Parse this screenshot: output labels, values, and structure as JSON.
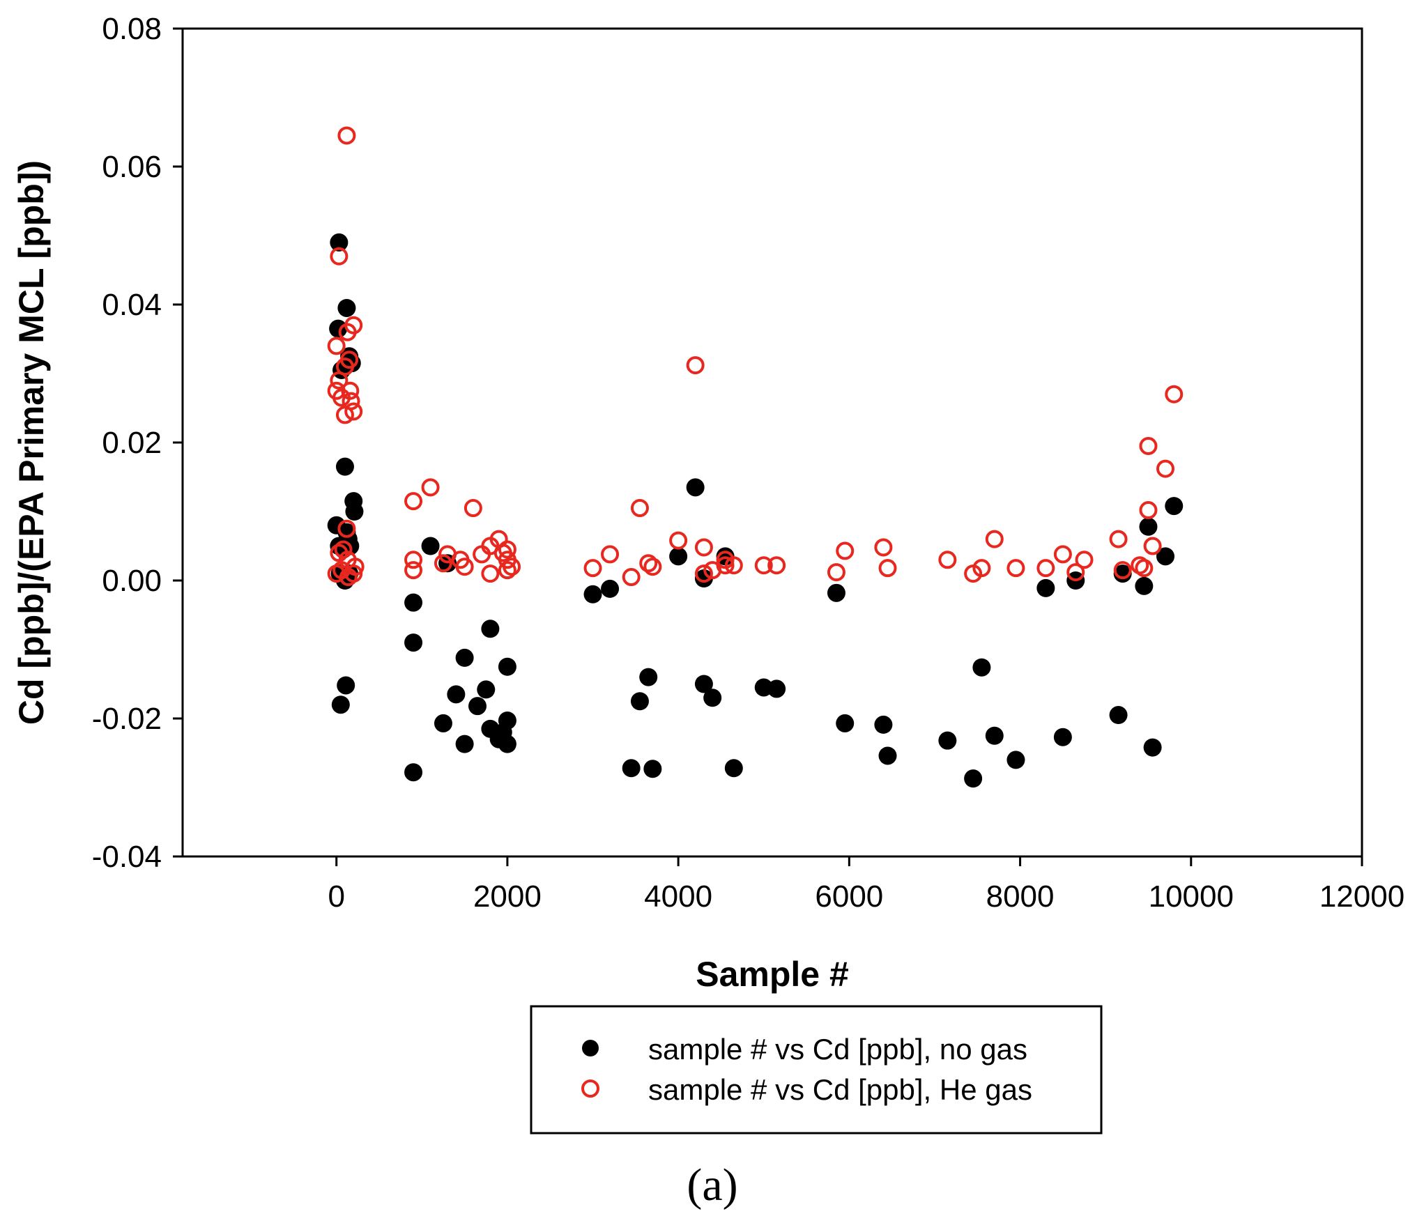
{
  "chart_data": {
    "type": "scatter",
    "title": "",
    "xlabel": "Sample #",
    "ylabel": "Cd [ppb]/(EPA Primary MCL [ppb])",
    "xlim": [
      -1800,
      12000
    ],
    "ylim": [
      -0.04,
      0.08
    ],
    "xticks": [
      0,
      2000,
      4000,
      6000,
      8000,
      10000,
      12000
    ],
    "xtick_labels": [
      "0",
      "2000",
      "4000",
      "6000",
      "8000",
      "10000",
      "12000"
    ],
    "yticks": [
      -0.04,
      -0.02,
      0.0,
      0.02,
      0.04,
      0.06,
      0.08
    ],
    "ytick_labels": [
      "-0.04",
      "-0.02",
      "0.00",
      "0.02",
      "0.04",
      "0.06",
      "0.08"
    ],
    "grid": false,
    "legend_position": "bottom-center",
    "panel_label": "(a)",
    "series": [
      {
        "name": "sample # vs Cd [ppb], no gas",
        "marker": "filled-circle",
        "color": "#000000",
        "points": [
          [
            30,
            0.049
          ],
          [
            20,
            0.0365
          ],
          [
            60,
            0.0305
          ],
          [
            120,
            0.0395
          ],
          [
            150,
            0.0325
          ],
          [
            180,
            0.0315
          ],
          [
            100,
            0.0165
          ],
          [
            200,
            0.0115
          ],
          [
            210,
            0.01
          ],
          [
            0,
            0.008
          ],
          [
            30,
            0.005
          ],
          [
            80,
            0.0045
          ],
          [
            120,
            0.007
          ],
          [
            160,
            0.005
          ],
          [
            140,
            0.006
          ],
          [
            40,
            0.001
          ],
          [
            100,
            0.0
          ],
          [
            150,
            0.001
          ],
          [
            110,
            -0.0152
          ],
          [
            50,
            -0.018
          ],
          [
            900,
            -0.0032
          ],
          [
            900,
            -0.009
          ],
          [
            900,
            -0.0278
          ],
          [
            1100,
            0.005
          ],
          [
            1250,
            -0.0207
          ],
          [
            1300,
            0.0025
          ],
          [
            1400,
            -0.0165
          ],
          [
            1500,
            -0.0112
          ],
          [
            1500,
            -0.0237
          ],
          [
            1650,
            -0.0182
          ],
          [
            1750,
            -0.0158
          ],
          [
            1800,
            -0.007
          ],
          [
            1800,
            -0.0215
          ],
          [
            1900,
            -0.023
          ],
          [
            1950,
            -0.022
          ],
          [
            2000,
            -0.0125
          ],
          [
            2000,
            -0.0203
          ],
          [
            2000,
            -0.0237
          ],
          [
            3000,
            -0.002
          ],
          [
            3200,
            -0.0012
          ],
          [
            3450,
            -0.0272
          ],
          [
            3550,
            -0.0175
          ],
          [
            3650,
            -0.014
          ],
          [
            3700,
            -0.0273
          ],
          [
            4000,
            0.0035
          ],
          [
            4200,
            0.0135
          ],
          [
            4300,
            -0.015
          ],
          [
            4300,
            0.0003
          ],
          [
            4400,
            -0.017
          ],
          [
            4550,
            0.0035
          ],
          [
            4650,
            -0.0272
          ],
          [
            5000,
            -0.0155
          ],
          [
            5150,
            -0.0157
          ],
          [
            5850,
            -0.0018
          ],
          [
            5950,
            -0.0207
          ],
          [
            6400,
            -0.0209
          ],
          [
            6450,
            -0.0254
          ],
          [
            7150,
            -0.0232
          ],
          [
            7450,
            -0.0287
          ],
          [
            7550,
            -0.0126
          ],
          [
            7700,
            -0.0225
          ],
          [
            7950,
            -0.026
          ],
          [
            8300,
            -0.0011
          ],
          [
            8500,
            -0.0227
          ],
          [
            8650,
            0.0
          ],
          [
            9150,
            -0.0195
          ],
          [
            9200,
            0.001
          ],
          [
            9450,
            -0.0008
          ],
          [
            9500,
            0.0078
          ],
          [
            9550,
            -0.0242
          ],
          [
            9700,
            0.0035
          ],
          [
            9800,
            0.0108
          ]
        ]
      },
      {
        "name": "sample # vs Cd [ppb], He gas",
        "marker": "open-circle",
        "color": "#e8281e",
        "points": [
          [
            120,
            0.0645
          ],
          [
            30,
            0.047
          ],
          [
            0,
            0.034
          ],
          [
            200,
            0.037
          ],
          [
            130,
            0.036
          ],
          [
            150,
            0.032
          ],
          [
            100,
            0.031
          ],
          [
            30,
            0.029
          ],
          [
            0,
            0.0275
          ],
          [
            60,
            0.0265
          ],
          [
            160,
            0.0275
          ],
          [
            170,
            0.026
          ],
          [
            200,
            0.0245
          ],
          [
            100,
            0.024
          ],
          [
            120,
            0.0075
          ],
          [
            80,
            0.0045
          ],
          [
            30,
            0.004
          ],
          [
            130,
            0.003
          ],
          [
            220,
            0.002
          ],
          [
            60,
            0.0015
          ],
          [
            0,
            0.001
          ],
          [
            140,
            0.0005
          ],
          [
            200,
            0.001
          ],
          [
            900,
            0.0115
          ],
          [
            900,
            0.003
          ],
          [
            900,
            0.0015
          ],
          [
            1100,
            0.0135
          ],
          [
            1250,
            0.0025
          ],
          [
            1300,
            0.0038
          ],
          [
            1450,
            0.003
          ],
          [
            1500,
            0.002
          ],
          [
            1600,
            0.0105
          ],
          [
            1700,
            0.0038
          ],
          [
            1800,
            0.005
          ],
          [
            1800,
            0.001
          ],
          [
            1900,
            0.006
          ],
          [
            1950,
            0.004
          ],
          [
            2000,
            0.0045
          ],
          [
            2000,
            0.003
          ],
          [
            2000,
            0.0015
          ],
          [
            2050,
            0.002
          ],
          [
            3000,
            0.0018
          ],
          [
            3200,
            0.0038
          ],
          [
            3450,
            0.0005
          ],
          [
            3550,
            0.0105
          ],
          [
            3650,
            0.0025
          ],
          [
            3700,
            0.002
          ],
          [
            4000,
            0.0058
          ],
          [
            4200,
            0.0312
          ],
          [
            4300,
            0.0048
          ],
          [
            4300,
            0.001
          ],
          [
            4400,
            0.0015
          ],
          [
            4550,
            0.003
          ],
          [
            4550,
            0.0022
          ],
          [
            4650,
            0.0022
          ],
          [
            5000,
            0.0022
          ],
          [
            5150,
            0.0022
          ],
          [
            5850,
            0.0012
          ],
          [
            5950,
            0.0043
          ],
          [
            6400,
            0.0048
          ],
          [
            6450,
            0.0018
          ],
          [
            7150,
            0.003
          ],
          [
            7450,
            0.001
          ],
          [
            7550,
            0.0018
          ],
          [
            7700,
            0.006
          ],
          [
            7950,
            0.0018
          ],
          [
            8300,
            0.0018
          ],
          [
            8500,
            0.0038
          ],
          [
            8650,
            0.0012
          ],
          [
            8750,
            0.003
          ],
          [
            9150,
            0.006
          ],
          [
            9200,
            0.0015
          ],
          [
            9400,
            0.0022
          ],
          [
            9450,
            0.0018
          ],
          [
            9500,
            0.0195
          ],
          [
            9500,
            0.0102
          ],
          [
            9550,
            0.005
          ],
          [
            9700,
            0.0162
          ],
          [
            9800,
            0.027
          ]
        ]
      }
    ]
  }
}
